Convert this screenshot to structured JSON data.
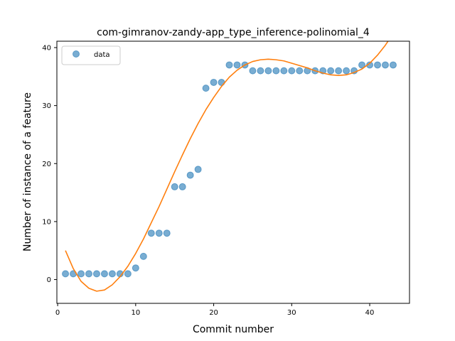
{
  "chart_data": {
    "type": "scatter",
    "title": "com-gimranov-zandy-app_type_inference-polinomial_4",
    "xlabel": "Commit number",
    "ylabel": "Number of instance of a feature",
    "xlim": [
      -0.1,
      45.1
    ],
    "ylim": [
      -4.1,
      41.1
    ],
    "xticks": [
      0,
      10,
      20,
      30,
      40
    ],
    "yticks": [
      0,
      10,
      20,
      30,
      40
    ],
    "legend": {
      "position": "top-left",
      "entries": [
        "data"
      ]
    },
    "grid": false,
    "colors": {
      "data": "#1f77b4",
      "fit": "#ff7f0e"
    },
    "series": [
      {
        "name": "data",
        "kind": "scatter",
        "x": [
          1,
          2,
          3,
          4,
          5,
          6,
          7,
          8,
          9,
          10,
          11,
          12,
          13,
          14,
          15,
          16,
          17,
          18,
          19,
          20,
          21,
          22,
          23,
          24,
          25,
          26,
          27,
          28,
          29,
          30,
          31,
          32,
          33,
          34,
          35,
          36,
          37,
          38,
          39,
          40,
          41,
          42,
          43
        ],
        "y": [
          1,
          1,
          1,
          1,
          1,
          1,
          1,
          1,
          1,
          2,
          4,
          8,
          8,
          8,
          16,
          16,
          18,
          19,
          33,
          34,
          34,
          37,
          37,
          37,
          36,
          36,
          36,
          36,
          36,
          36,
          36,
          36,
          36,
          36,
          36,
          36,
          36,
          36,
          37,
          37,
          37,
          37,
          37
        ]
      },
      {
        "kind": "line",
        "x": [
          1,
          2,
          3,
          4,
          5,
          6,
          7,
          8,
          9,
          10,
          11,
          12,
          13,
          14,
          15,
          16,
          17,
          18,
          19,
          20,
          21,
          22,
          23,
          24,
          25,
          26,
          27,
          28,
          29,
          30,
          31,
          32,
          33,
          34,
          35,
          36,
          37,
          38,
          39,
          40,
          41,
          42,
          43
        ],
        "y": [
          5.0,
          1.9,
          -0.3,
          -1.5,
          -2.0,
          -1.8,
          -0.9,
          0.5,
          2.3,
          4.5,
          7.0,
          9.8,
          12.6,
          15.6,
          18.6,
          21.5,
          24.3,
          26.9,
          29.3,
          31.4,
          33.3,
          34.9,
          36.1,
          37.0,
          37.6,
          37.9,
          38.0,
          37.9,
          37.7,
          37.3,
          36.9,
          36.5,
          36.0,
          35.6,
          35.3,
          35.2,
          35.3,
          35.7,
          36.3,
          37.3,
          38.7,
          40.4,
          42.4
        ]
      }
    ]
  }
}
